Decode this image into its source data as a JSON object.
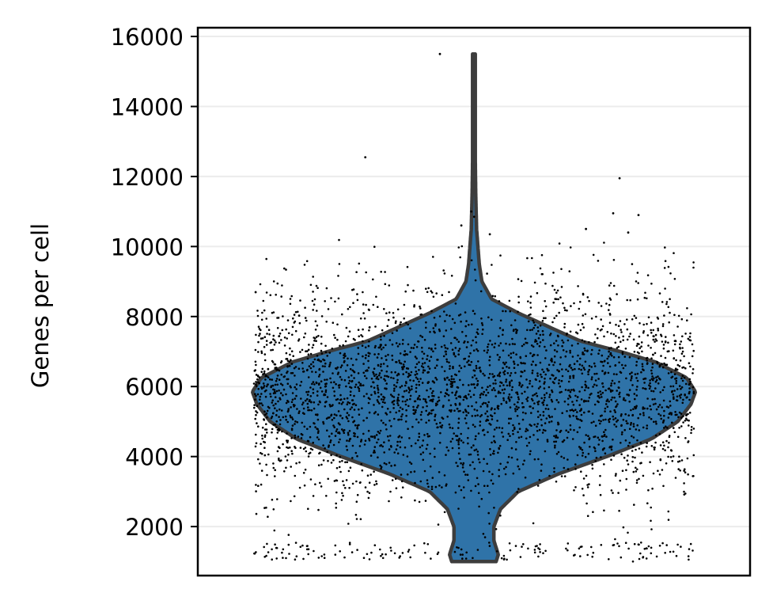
{
  "chart_data": {
    "type": "violin",
    "ylabel": "Genes per cell",
    "ylim": [
      600,
      16250
    ],
    "yticks": [
      2000,
      4000,
      6000,
      8000,
      10000,
      12000,
      14000,
      16000
    ],
    "ytick_labels": [
      "2000",
      "4000",
      "6000",
      "8000",
      "10000",
      "12000",
      "14000",
      "16000"
    ],
    "grid": true,
    "violin": {
      "min": 1000,
      "max": 15500,
      "profile": [
        {
          "y": 1000,
          "half_width": 0.05
        },
        {
          "y": 1200,
          "half_width": 0.055
        },
        {
          "y": 1600,
          "half_width": 0.045
        },
        {
          "y": 2000,
          "half_width": 0.045
        },
        {
          "y": 2500,
          "half_width": 0.06
        },
        {
          "y": 3000,
          "half_width": 0.1
        },
        {
          "y": 3500,
          "half_width": 0.19
        },
        {
          "y": 4000,
          "half_width": 0.3
        },
        {
          "y": 4500,
          "half_width": 0.4
        },
        {
          "y": 5000,
          "half_width": 0.46
        },
        {
          "y": 5500,
          "half_width": 0.49
        },
        {
          "y": 5850,
          "half_width": 0.5
        },
        {
          "y": 6250,
          "half_width": 0.48
        },
        {
          "y": 6700,
          "half_width": 0.41
        },
        {
          "y": 7000,
          "half_width": 0.33
        },
        {
          "y": 7300,
          "half_width": 0.24
        },
        {
          "y": 7700,
          "half_width": 0.17
        },
        {
          "y": 8100,
          "half_width": 0.1
        },
        {
          "y": 8500,
          "half_width": 0.04
        },
        {
          "y": 9000,
          "half_width": 0.018
        },
        {
          "y": 9500,
          "half_width": 0.012
        },
        {
          "y": 10000,
          "half_width": 0.009
        },
        {
          "y": 10500,
          "half_width": 0.006
        },
        {
          "y": 11500,
          "half_width": 0.004
        },
        {
          "y": 12500,
          "half_width": 0.003
        },
        {
          "y": 14000,
          "half_width": 0.003
        },
        {
          "y": 15500,
          "half_width": 0.003
        }
      ]
    },
    "points": {
      "count": 3200,
      "outliers": [
        15500,
        12550,
        11950,
        11000,
        10950,
        10850,
        10900,
        10600,
        10500,
        10400,
        10350
      ]
    },
    "colors": {
      "violin_fill": "#2f73a8",
      "violin_edge": "#3d3d3d",
      "points": "#000000",
      "grid": "#ececec",
      "axes": "#000000"
    }
  }
}
